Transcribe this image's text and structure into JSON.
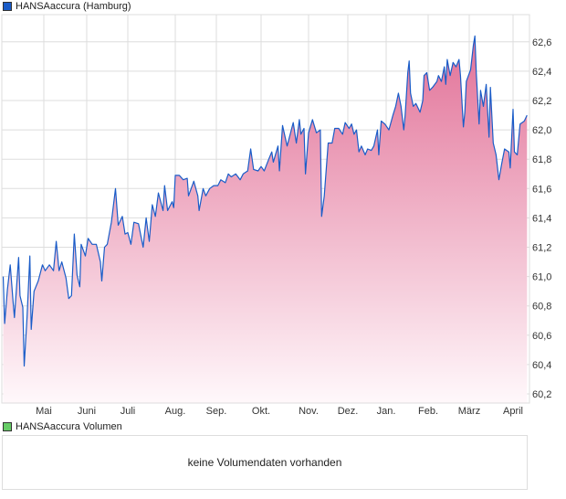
{
  "legend": {
    "price_label": "HANSAaccura (Hamburg)",
    "price_color": "#1a5cc8",
    "volume_label": "HANSAaccura Volumen",
    "volume_color": "#66cc66"
  },
  "volume_panel": {
    "message": "keine Volumendaten vorhanden"
  },
  "chart_data": {
    "type": "area",
    "title": "",
    "xlabel": "",
    "ylabel": "",
    "ylim": [
      60.14,
      62.8
    ],
    "grid": true,
    "line_color": "#1a5cc8",
    "fill_color": "#e06a92",
    "y_ticks": [
      "60,2",
      "60,4",
      "60,6",
      "60,8",
      "61,0",
      "61,2",
      "61,4",
      "61,6",
      "61,8",
      "62,0",
      "62,2",
      "62,4",
      "62,6"
    ],
    "y_tick_values": [
      60.2,
      60.4,
      60.6,
      60.8,
      61.0,
      61.2,
      61.4,
      61.6,
      61.8,
      62.0,
      62.2,
      62.4,
      62.6
    ],
    "x_ticks": [
      "Mai",
      "Juni",
      "Juli",
      "Aug.",
      "Sep.",
      "Okt.",
      "Nov.",
      "Dez.",
      "Jan.",
      "Feb.",
      "März",
      "April"
    ],
    "x": [
      "02.04.",
      "03.04.",
      "05.04.",
      "07.04.",
      "09.04.",
      "10.04.",
      "13.04.",
      "14.04.",
      "16.04.",
      "17.04.",
      "19.04.",
      "21.04.",
      "22.04.",
      "24.04.",
      "27.04.",
      "30.04.",
      "02.05.",
      "05.05.",
      "08.05.",
      "10.05.",
      "12.05.",
      "14.05.",
      "17.05.",
      "19.05.",
      "21.05.",
      "23.05.",
      "25.05.",
      "27.05.",
      "28.05.",
      "31.05.",
      "02.06.",
      "05.06.",
      "08.06.",
      "11.06.",
      "12.06.",
      "14.06.",
      "16.06.",
      "19.06.",
      "22.06.",
      "24.06.",
      "27.06.",
      "29.06.",
      "01.07.",
      "03.07.",
      "05.07.",
      "08.07.",
      "11.07.",
      "13.07.",
      "15.07.",
      "17.07.",
      "19.07.",
      "21.07.",
      "24.07.",
      "25.07.",
      "27.07.",
      "30.07.",
      "31.07.",
      "01.08.",
      "04.08.",
      "07.08.",
      "10.08.",
      "11.08.",
      "15.08.",
      "18.08.",
      "19.08.",
      "22.08.",
      "24.08.",
      "27.08.",
      "30.08.",
      "02.09.",
      "04.09.",
      "07.09.",
      "09.09.",
      "11.09.",
      "14.09.",
      "17.09.",
      "19.09.",
      "22.09.",
      "24.09.",
      "26.09.",
      "29.09.",
      "01.10.",
      "03.10.",
      "06.10.",
      "08.10.",
      "09.10.",
      "12.10.",
      "13.10.",
      "15.10.",
      "18.10.",
      "20.10.",
      "22.10.",
      "24.10.",
      "26.10.",
      "27.10.",
      "29.10.",
      "30.10.",
      "01.11.",
      "04.11.",
      "07.11.",
      "10.11.",
      "11.11.",
      "13.11.",
      "16.11.",
      "19.11.",
      "21.11.",
      "24.11.",
      "27.11.",
      "29.11.",
      "02.12.",
      "04.12.",
      "06.12.",
      "08.12.",
      "10.12.",
      "12.12.",
      "15.12.",
      "17.12.",
      "20.12.",
      "22.12.",
      "25.12.",
      "26.12.",
      "28.12.",
      "31.12.",
      "03.01.",
      "06.01.",
      "08.01.",
      "10.01.",
      "12.01.",
      "14.01.",
      "15.01.",
      "17.01.",
      "18.01.",
      "19.01.",
      "21.01.",
      "23.01.",
      "26.01.",
      "28.01.",
      "29.01.",
      "31.01.",
      "02.02.",
      "04.02.",
      "07.02.",
      "08.02.",
      "10.02.",
      "12.02.",
      "13.02.",
      "14.02.",
      "16.02.",
      "18.02.",
      "20.02.",
      "22.02.",
      "23.02.",
      "25.02.",
      "26.02.",
      "27.02.",
      "02.03.",
      "04.03.",
      "05.03.",
      "06.03.",
      "08.03.",
      "09.03.",
      "11.03.",
      "13.03.",
      "15.03.",
      "16.03.",
      "18.03.",
      "20.03.",
      "22.03.",
      "24.03.",
      "26.03.",
      "29.03.",
      "30.03.",
      "01.04.",
      "02.04.",
      "04.04.",
      "06.04.",
      "09.04.",
      "11.04."
    ],
    "values": [
      61.0,
      60.68,
      60.91,
      61.08,
      60.83,
      60.72,
      61.13,
      60.87,
      60.79,
      60.39,
      60.72,
      61.14,
      60.64,
      60.9,
      60.97,
      61.08,
      61.04,
      61.08,
      61.04,
      61.24,
      61.04,
      61.1,
      60.99,
      60.85,
      60.87,
      61.29,
      61.01,
      60.93,
      61.22,
      61.14,
      61.26,
      61.22,
      61.22,
      61.1,
      60.97,
      61.2,
      61.22,
      61.37,
      61.6,
      61.35,
      61.41,
      61.29,
      61.3,
      61.22,
      61.37,
      61.36,
      61.2,
      61.4,
      61.24,
      61.49,
      61.41,
      61.57,
      61.45,
      61.62,
      61.45,
      61.51,
      61.47,
      61.69,
      61.69,
      61.66,
      61.67,
      61.55,
      61.65,
      61.55,
      61.45,
      61.6,
      61.55,
      61.6,
      61.62,
      61.62,
      61.66,
      61.64,
      61.7,
      61.68,
      61.7,
      61.66,
      61.7,
      61.72,
      61.87,
      61.73,
      61.72,
      61.75,
      61.72,
      61.8,
      61.85,
      61.78,
      61.89,
      61.72,
      62.03,
      61.89,
      61.97,
      62.05,
      61.91,
      62.07,
      61.97,
      62.01,
      61.7,
      61.98,
      62.07,
      61.98,
      62.0,
      61.41,
      61.55,
      61.91,
      61.91,
      62.01,
      62.01,
      61.97,
      62.05,
      62.01,
      62.04,
      61.97,
      62.0,
      61.85,
      61.89,
      61.83,
      61.87,
      61.86,
      61.89,
      62.0,
      61.83,
      62.06,
      62.04,
      62.0,
      62.1,
      62.16,
      62.25,
      62.16,
      62.0,
      62.1,
      62.39,
      62.47,
      62.25,
      62.16,
      62.18,
      62.12,
      62.2,
      62.37,
      62.39,
      62.27,
      62.29,
      62.33,
      62.37,
      62.33,
      62.43,
      62.31,
      62.48,
      62.37,
      62.46,
      62.43,
      62.48,
      62.37,
      62.02,
      62.12,
      62.33,
      62.41,
      62.58,
      62.64,
      62.39,
      62.04,
      62.27,
      62.16,
      62.31,
      61.95,
      62.29,
      61.91,
      61.83,
      61.66,
      61.77,
      61.87,
      61.85,
      61.74,
      62.14,
      61.85,
      61.83,
      62.04,
      62.06,
      62.1
    ]
  }
}
